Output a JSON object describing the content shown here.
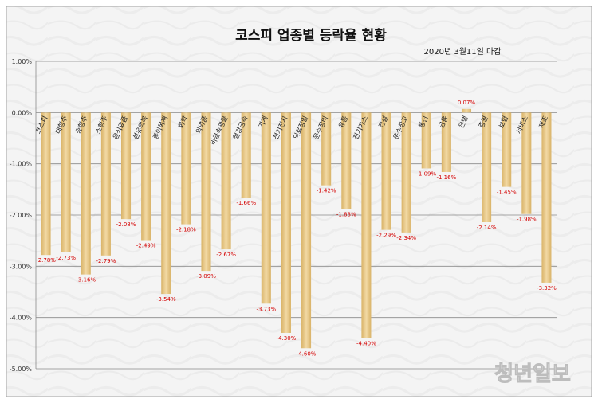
{
  "chart_data": {
    "type": "bar",
    "title": "코스피 업종별 등락율 현황",
    "subtitle": "2020년 3월11일  마감",
    "categories": [
      "코스피",
      "대형주",
      "중형주",
      "소형주",
      "음식료품",
      "섬유의복",
      "종이목재",
      "화학",
      "의약품",
      "비금속광물",
      "철강금속",
      "기계",
      "전기전자",
      "의료정밀",
      "운수장비",
      "유통",
      "전기가스",
      "건설",
      "운수창고",
      "통신",
      "금융",
      "은행",
      "증권",
      "보험",
      "서비스",
      "제조"
    ],
    "values": [
      -2.78,
      -2.73,
      -3.16,
      -2.79,
      -2.08,
      -2.49,
      -3.54,
      -2.18,
      -3.09,
      -2.67,
      -1.66,
      -3.73,
      -4.3,
      -4.6,
      -1.42,
      -1.88,
      -4.4,
      -2.29,
      -2.34,
      -1.09,
      -1.16,
      0.07,
      -2.14,
      -1.45,
      -1.98,
      -3.32
    ],
    "value_labels": [
      "-2.78%",
      "-2.73%",
      "-3.16%",
      "-2.79%",
      "-2.08%",
      "-2.49%",
      "-3.54%",
      "-2.18%",
      "-3.09%",
      "-2.67%",
      "-1.66%",
      "-3.73%",
      "-4.30%",
      "-4.60%",
      "-1.42%",
      "-1.88%",
      "-4.40%",
      "-2.29%",
      "-2.34%",
      "-1.09%",
      "-1.16%",
      "0.07%",
      "-2.14%",
      "-1.45%",
      "-1.98%",
      "-3.32%"
    ],
    "ylim": [
      -5.0,
      1.0
    ],
    "yticks": [
      1.0,
      0.0,
      -1.0,
      -2.0,
      -3.0,
      -4.0,
      -5.0
    ],
    "ytick_labels": [
      "1.00%",
      "0.00%",
      "-1.00%",
      "-2.00%",
      "-3.00%",
      "-4.00%",
      "-5.00%"
    ],
    "grid": true,
    "bar_color": "#e9c98a",
    "label_color": "#d40000"
  },
  "watermark": "청년일보"
}
